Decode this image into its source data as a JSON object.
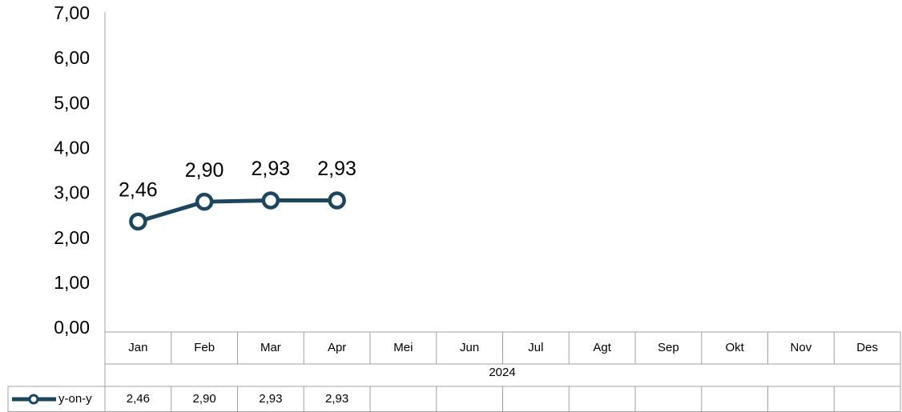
{
  "chart_data": {
    "type": "line",
    "categories": [
      "Jan",
      "Feb",
      "Mar",
      "Apr",
      "Mei",
      "Jun",
      "Jul",
      "Agt",
      "Sep",
      "Okt",
      "Nov",
      "Des"
    ],
    "group_label": "2024",
    "series": [
      {
        "name": "y-on-y",
        "color": "#1b4660",
        "values": [
          2.46,
          2.9,
          2.93,
          2.93,
          null,
          null,
          null,
          null,
          null,
          null,
          null,
          null
        ],
        "value_labels": [
          "2,46",
          "2,90",
          "2,93",
          "2,93",
          null,
          null,
          null,
          null,
          null,
          null,
          null,
          null
        ]
      }
    ],
    "ylim": [
      0,
      7
    ],
    "yticks": [
      {
        "value": 0,
        "label": "0,00"
      },
      {
        "value": 1,
        "label": "1,00"
      },
      {
        "value": 2,
        "label": "2,00"
      },
      {
        "value": 3,
        "label": "3,00"
      },
      {
        "value": 4,
        "label": "4,00"
      },
      {
        "value": 5,
        "label": "5,00"
      },
      {
        "value": 6,
        "label": "6,00"
      },
      {
        "value": 7,
        "label": "7,00"
      }
    ],
    "grid": false
  }
}
